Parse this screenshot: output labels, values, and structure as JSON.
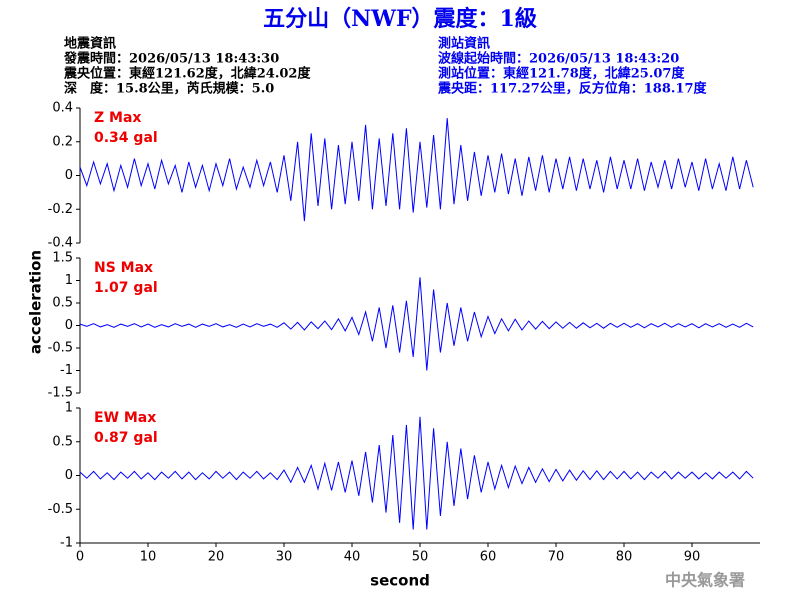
{
  "header": {
    "title": "五分山（NWF）震度：1級",
    "left_info": [
      "地震資訊",
      "發震時間：2026/05/13 18:43:30",
      "震央位置：東經121.62度，北緯24.02度",
      "深　度：15.8公里，芮氏規模：5.0"
    ],
    "right_info": [
      "測站資訊",
      "波線起始時間：2026/05/13 18:43:20",
      "測站位置：東經121.78度，北緯25.07度",
      "震央距：117.27公里，反方位角：188.17度"
    ]
  },
  "footer": "中央氣象署",
  "chart_data": [
    {
      "type": "line",
      "label": "Z Max",
      "max_label": "0.34 gal",
      "xlim": [
        0,
        100
      ],
      "ylim": [
        -0.4,
        0.4
      ],
      "yticks": [
        0.4,
        0.2,
        0,
        -0.2,
        -0.4
      ],
      "x": [
        0,
        1,
        2,
        3,
        4,
        5,
        6,
        7,
        8,
        9,
        10,
        11,
        12,
        13,
        14,
        15,
        16,
        17,
        18,
        19,
        20,
        21,
        22,
        23,
        24,
        25,
        26,
        27,
        28,
        29,
        30,
        31,
        32,
        33,
        34,
        35,
        36,
        37,
        38,
        39,
        40,
        41,
        42,
        43,
        44,
        45,
        46,
        47,
        48,
        49,
        50,
        51,
        52,
        53,
        54,
        55,
        56,
        57,
        58,
        59,
        60,
        61,
        62,
        63,
        64,
        65,
        66,
        67,
        68,
        69,
        70,
        71,
        72,
        73,
        74,
        75,
        76,
        77,
        78,
        79,
        80,
        81,
        82,
        83,
        84,
        85,
        86,
        87,
        88,
        89,
        90,
        91,
        92,
        93,
        94,
        95,
        96,
        97,
        98,
        99
      ],
      "series": [
        {
          "color": "#0000ff",
          "values": [
            0.05,
            -0.06,
            0.08,
            -0.05,
            0.07,
            -0.09,
            0.06,
            -0.07,
            0.1,
            -0.06,
            0.07,
            -0.08,
            0.09,
            -0.05,
            0.06,
            -0.1,
            0.08,
            -0.07,
            0.06,
            -0.09,
            0.07,
            -0.06,
            0.1,
            -0.08,
            0.05,
            -0.07,
            0.09,
            -0.06,
            0.08,
            -0.1,
            0.12,
            -0.15,
            0.2,
            -0.27,
            0.25,
            -0.18,
            0.22,
            -0.2,
            0.18,
            -0.17,
            0.2,
            -0.15,
            0.3,
            -0.2,
            0.22,
            -0.18,
            0.25,
            -0.2,
            0.28,
            -0.22,
            0.2,
            -0.19,
            0.24,
            -0.2,
            0.34,
            -0.17,
            0.18,
            -0.15,
            0.14,
            -0.12,
            0.12,
            -0.1,
            0.13,
            -0.11,
            0.1,
            -0.12,
            0.11,
            -0.09,
            0.12,
            -0.1,
            0.1,
            -0.08,
            0.11,
            -0.09,
            0.1,
            -0.08,
            0.09,
            -0.1,
            0.11,
            -0.08,
            0.09,
            -0.08,
            0.1,
            -0.09,
            0.08,
            -0.07,
            0.09,
            -0.08,
            0.1,
            -0.07,
            0.08,
            -0.09,
            0.1,
            -0.08,
            0.07,
            -0.09,
            0.11,
            -0.08,
            0.09,
            -0.07
          ]
        }
      ]
    },
    {
      "type": "line",
      "label": "NS Max",
      "max_label": "1.07 gal",
      "ylabel": "acceleration",
      "xlim": [
        0,
        100
      ],
      "ylim": [
        -1.5,
        1.5
      ],
      "yticks": [
        1.5,
        1,
        0.5,
        0,
        -0.5,
        -1,
        -1.5
      ],
      "x": [
        0,
        1,
        2,
        3,
        4,
        5,
        6,
        7,
        8,
        9,
        10,
        11,
        12,
        13,
        14,
        15,
        16,
        17,
        18,
        19,
        20,
        21,
        22,
        23,
        24,
        25,
        26,
        27,
        28,
        29,
        30,
        31,
        32,
        33,
        34,
        35,
        36,
        37,
        38,
        39,
        40,
        41,
        42,
        43,
        44,
        45,
        46,
        47,
        48,
        49,
        50,
        51,
        52,
        53,
        54,
        55,
        56,
        57,
        58,
        59,
        60,
        61,
        62,
        63,
        64,
        65,
        66,
        67,
        68,
        69,
        70,
        71,
        72,
        73,
        74,
        75,
        76,
        77,
        78,
        79,
        80,
        81,
        82,
        83,
        84,
        85,
        86,
        87,
        88,
        89,
        90,
        91,
        92,
        93,
        94,
        95,
        96,
        97,
        98,
        99
      ],
      "series": [
        {
          "color": "#0000ff",
          "values": [
            0.03,
            -0.02,
            0.04,
            -0.03,
            0.02,
            -0.04,
            0.03,
            -0.02,
            0.04,
            -0.03,
            0.03,
            -0.04,
            0.02,
            -0.03,
            0.04,
            -0.02,
            0.03,
            -0.04,
            0.03,
            -0.02,
            0.04,
            -0.03,
            0.02,
            -0.04,
            0.03,
            -0.03,
            0.04,
            -0.02,
            0.03,
            -0.04,
            0.06,
            -0.08,
            0.07,
            -0.1,
            0.08,
            -0.07,
            0.1,
            -0.09,
            0.15,
            -0.12,
            0.18,
            -0.2,
            0.3,
            -0.35,
            0.4,
            -0.5,
            0.45,
            -0.6,
            0.55,
            -0.7,
            1.07,
            -1.0,
            0.8,
            -0.6,
            0.5,
            -0.45,
            0.4,
            -0.35,
            0.3,
            -0.25,
            0.2,
            -0.18,
            0.15,
            -0.12,
            0.14,
            -0.1,
            0.1,
            -0.08,
            0.09,
            -0.07,
            0.08,
            -0.06,
            0.07,
            -0.06,
            0.06,
            -0.05,
            0.05,
            -0.06,
            0.05,
            -0.04,
            0.05,
            -0.04,
            0.04,
            -0.05,
            0.04,
            -0.03,
            0.05,
            -0.04,
            0.04,
            -0.03,
            0.04,
            -0.05,
            0.04,
            -0.03,
            0.04,
            -0.04,
            0.03,
            -0.04,
            0.05,
            -0.03
          ]
        }
      ]
    },
    {
      "type": "line",
      "label": "EW Max",
      "max_label": "0.87 gal",
      "xlabel": "second",
      "xlim": [
        0,
        100
      ],
      "ylim": [
        -1,
        1
      ],
      "yticks": [
        1,
        0.5,
        0,
        -0.5,
        -1
      ],
      "xticks": [
        0,
        10,
        20,
        30,
        40,
        50,
        60,
        70,
        80,
        90
      ],
      "x": [
        0,
        1,
        2,
        3,
        4,
        5,
        6,
        7,
        8,
        9,
        10,
        11,
        12,
        13,
        14,
        15,
        16,
        17,
        18,
        19,
        20,
        21,
        22,
        23,
        24,
        25,
        26,
        27,
        28,
        29,
        30,
        31,
        32,
        33,
        34,
        35,
        36,
        37,
        38,
        39,
        40,
        41,
        42,
        43,
        44,
        45,
        46,
        47,
        48,
        49,
        50,
        51,
        52,
        53,
        54,
        55,
        56,
        57,
        58,
        59,
        60,
        61,
        62,
        63,
        64,
        65,
        66,
        67,
        68,
        69,
        70,
        71,
        72,
        73,
        74,
        75,
        76,
        77,
        78,
        79,
        80,
        81,
        82,
        83,
        84,
        85,
        86,
        87,
        88,
        89,
        90,
        91,
        92,
        93,
        94,
        95,
        96,
        97,
        98,
        99
      ],
      "series": [
        {
          "color": "#0000ff",
          "values": [
            0.05,
            -0.04,
            0.06,
            -0.05,
            0.04,
            -0.06,
            0.05,
            -0.04,
            0.06,
            -0.05,
            0.04,
            -0.06,
            0.05,
            -0.04,
            0.06,
            -0.05,
            0.05,
            -0.06,
            0.04,
            -0.05,
            0.06,
            -0.04,
            0.05,
            -0.06,
            0.05,
            -0.04,
            0.06,
            -0.05,
            0.04,
            -0.06,
            0.08,
            -0.1,
            0.12,
            -0.1,
            0.15,
            -0.2,
            0.18,
            -0.22,
            0.2,
            -0.25,
            0.22,
            -0.3,
            0.35,
            -0.4,
            0.45,
            -0.55,
            0.6,
            -0.7,
            0.75,
            -0.8,
            0.87,
            -0.8,
            0.7,
            -0.6,
            0.5,
            -0.45,
            0.4,
            -0.35,
            0.3,
            -0.25,
            0.2,
            -0.2,
            0.15,
            -0.18,
            0.14,
            -0.12,
            0.12,
            -0.1,
            0.1,
            -0.09,
            0.09,
            -0.08,
            0.08,
            -0.07,
            0.07,
            -0.06,
            0.07,
            -0.06,
            0.06,
            -0.05,
            0.06,
            -0.05,
            0.05,
            -0.06,
            0.05,
            -0.04,
            0.06,
            -0.05,
            0.05,
            -0.04,
            0.05,
            -0.05,
            0.04,
            -0.05,
            0.05,
            -0.04,
            0.05,
            -0.05,
            0.06,
            -0.04
          ]
        }
      ]
    }
  ]
}
